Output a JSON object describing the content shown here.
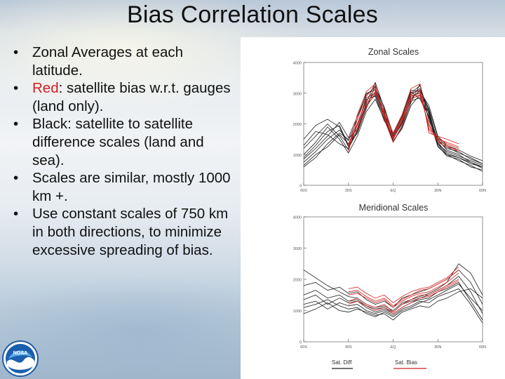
{
  "slide": {
    "title": "Bias Correlation Scales",
    "bullets": [
      {
        "lead": "",
        "lead_color": "",
        "text": "Zonal Averages at each latitude."
      },
      {
        "lead": "Red",
        "lead_color": "#d12020",
        "text": ": satellite bias w.r.t. gauges (land only)."
      },
      {
        "lead": "",
        "lead_color": "",
        "text": "Black: satellite to satellite difference scales (land and sea)."
      },
      {
        "lead": "",
        "lead_color": "",
        "text": "Scales are similar, mostly 1000 km +."
      },
      {
        "lead": "",
        "lead_color": "",
        "text": "Use constant scales of 750 km in both directions, to minimize excessive spreading of bias."
      }
    ],
    "bullet_glyph": "•",
    "logo": {
      "text": "NOAA",
      "icon": "noaa-logo-icon"
    }
  },
  "colors": {
    "black_series": "#1a1a1a",
    "red_series": "#d42020",
    "accent_red": "#d12020"
  },
  "chart_data": [
    {
      "type": "line",
      "title": "Zonal Scales",
      "ylim": [
        0,
        4000
      ],
      "yticks": [
        {
          "value": 0,
          "label": "0"
        },
        {
          "value": 1000,
          "label": "1000"
        },
        {
          "value": 2000,
          "label": "2000"
        },
        {
          "value": 3000,
          "label": "3000"
        },
        {
          "value": 4000,
          "label": "4000"
        }
      ],
      "xlim": [
        -60,
        60
      ],
      "xticks": [
        {
          "value": -60,
          "label": "60S"
        },
        {
          "value": -30,
          "label": "30S"
        },
        {
          "value": 0,
          "label": "EQ"
        },
        {
          "value": 30,
          "label": "30N"
        },
        {
          "value": 60,
          "label": "60N"
        }
      ],
      "x": [
        -60,
        -52,
        -44,
        -36,
        -30,
        -24,
        -18,
        -12,
        -6,
        0,
        6,
        12,
        18,
        24,
        30,
        36,
        44,
        52,
        60
      ],
      "series": [
        {
          "group": "black",
          "values": [
            600,
            900,
            1350,
            1700,
            1500,
            1850,
            2650,
            3050,
            2250,
            1500,
            2100,
            2900,
            3000,
            2400,
            1350,
            1100,
            950,
            800,
            650
          ]
        },
        {
          "group": "black",
          "values": [
            900,
            1300,
            1750,
            1950,
            1300,
            1700,
            2500,
            3250,
            2400,
            1400,
            1900,
            2700,
            3300,
            2100,
            1500,
            1150,
            1000,
            750,
            550
          ]
        },
        {
          "group": "black",
          "values": [
            1200,
            1600,
            2000,
            1600,
            1150,
            2000,
            2800,
            2900,
            2100,
            1650,
            2250,
            3050,
            2800,
            2250,
            1300,
            950,
            850,
            600,
            500
          ]
        },
        {
          "group": "black",
          "values": [
            750,
            1100,
            1500,
            1800,
            1450,
            2150,
            3000,
            3100,
            2300,
            1550,
            2000,
            2800,
            3100,
            2500,
            1550,
            1250,
            1050,
            900,
            700
          ]
        },
        {
          "group": "black",
          "values": [
            1500,
            1950,
            2150,
            1900,
            1250,
            1800,
            2700,
            3350,
            2500,
            1600,
            2150,
            3000,
            3250,
            2300,
            1400,
            1050,
            900,
            700,
            600
          ]
        },
        {
          "group": "black",
          "values": [
            1000,
            1400,
            1900,
            1500,
            1050,
            1600,
            2400,
            2800,
            2150,
            1450,
            1850,
            2600,
            2950,
            2200,
            1250,
            1000,
            800,
            650,
            450
          ]
        },
        {
          "group": "black",
          "values": [
            650,
            1000,
            1250,
            1650,
            1350,
            1950,
            2850,
            3000,
            2350,
            1700,
            2300,
            3100,
            3050,
            2600,
            1600,
            1300,
            1150,
            950,
            800
          ]
        },
        {
          "group": "black",
          "values": [
            1300,
            1750,
            1650,
            1350,
            1200,
            1750,
            2600,
            2950,
            2200,
            1500,
            2050,
            2750,
            2850,
            2350,
            1450,
            1200,
            1100,
            850,
            700
          ]
        },
        {
          "group": "black",
          "values": [
            850,
            1200,
            1600,
            2050,
            1550,
            2250,
            2950,
            3200,
            2550,
            1650,
            2200,
            2950,
            3150,
            2450,
            1350,
            1000,
            900,
            750,
            600
          ]
        },
        {
          "group": "red",
          "values": [
            null,
            null,
            null,
            null,
            1350,
            2000,
            2750,
            3150,
            2300,
            1550,
            2150,
            3000,
            3100,
            1800,
            1500,
            1400,
            1250,
            null,
            null
          ]
        },
        {
          "group": "red",
          "values": [
            null,
            null,
            null,
            null,
            1200,
            2300,
            3050,
            3300,
            2150,
            1400,
            1950,
            2800,
            2950,
            1950,
            1450,
            1300,
            1100,
            null,
            null
          ]
        },
        {
          "group": "red",
          "values": [
            null,
            null,
            null,
            null,
            1550,
            1800,
            2550,
            3000,
            2450,
            1700,
            2300,
            3150,
            3300,
            1700,
            1600,
            1500,
            1350,
            null,
            null
          ]
        },
        {
          "group": "red",
          "values": [
            null,
            null,
            null,
            null,
            1100,
            2150,
            2900,
            3250,
            2250,
            1500,
            2100,
            2850,
            3050,
            1850,
            1550,
            1350,
            1200,
            null,
            null
          ]
        },
        {
          "group": "red",
          "values": [
            null,
            null,
            null,
            null,
            1300,
            1950,
            2650,
            3050,
            2350,
            1650,
            2200,
            2950,
            2900,
            2000,
            1400,
            1250,
            1150,
            null,
            null
          ]
        }
      ]
    },
    {
      "type": "line",
      "title": "Meridional Scales",
      "ylim": [
        0,
        4000
      ],
      "yticks": [
        {
          "value": 0,
          "label": "0"
        },
        {
          "value": 1000,
          "label": "1000"
        },
        {
          "value": 2000,
          "label": "2000"
        },
        {
          "value": 3000,
          "label": "3000"
        },
        {
          "value": 4000,
          "label": "4000"
        }
      ],
      "xlim": [
        -60,
        60
      ],
      "xticks": [
        {
          "value": -60,
          "label": "60S"
        },
        {
          "value": -30,
          "label": "30S"
        },
        {
          "value": 0,
          "label": "EQ"
        },
        {
          "value": 30,
          "label": "30N"
        },
        {
          "value": 60,
          "label": "60N"
        }
      ],
      "x": [
        -60,
        -52,
        -44,
        -36,
        -30,
        -24,
        -18,
        -12,
        -6,
        0,
        6,
        12,
        18,
        24,
        30,
        36,
        44,
        52,
        60
      ],
      "series": [
        {
          "group": "black",
          "values": [
            1200,
            1300,
            1050,
            1250,
            1150,
            1200,
            1000,
            900,
            1000,
            850,
            1050,
            1150,
            1300,
            1250,
            1450,
            1550,
            1700,
            1200,
            600
          ]
        },
        {
          "group": "black",
          "values": [
            1500,
            1650,
            1400,
            1500,
            1300,
            1350,
            1150,
            1050,
            1100,
            950,
            1200,
            1300,
            1400,
            1500,
            1650,
            1800,
            2100,
            1600,
            900
          ]
        },
        {
          "group": "black",
          "values": [
            900,
            1050,
            1250,
            1000,
            950,
            1050,
            950,
            850,
            900,
            700,
            950,
            1050,
            1150,
            1100,
            1300,
            1400,
            1600,
            1700,
            1400
          ]
        },
        {
          "group": "black",
          "values": [
            1800,
            1900,
            1650,
            1750,
            1550,
            1600,
            1350,
            1200,
            1300,
            1100,
            1400,
            1500,
            1600,
            1700,
            1850,
            2000,
            2300,
            1900,
            1200
          ]
        },
        {
          "group": "black",
          "values": [
            1100,
            1200,
            1350,
            1150,
            1050,
            1100,
            900,
            800,
            950,
            800,
            1000,
            1100,
            1250,
            1350,
            1500,
            1650,
            1850,
            1400,
            1000
          ]
        },
        {
          "group": "black",
          "values": [
            2300,
            2050,
            1800,
            1600,
            1450,
            1400,
            1200,
            1100,
            1150,
            1000,
            1250,
            1350,
            1450,
            1550,
            1700,
            1900,
            2500,
            2200,
            1500
          ]
        },
        {
          "group": "black",
          "values": [
            1350,
            1500,
            1200,
            1400,
            1250,
            1300,
            1100,
            950,
            1050,
            900,
            1100,
            1250,
            1350,
            1400,
            1600,
            1700,
            1900,
            1300,
            700
          ]
        },
        {
          "group": "red",
          "values": [
            null,
            null,
            null,
            null,
            1500,
            1550,
            1400,
            1250,
            1350,
            1100,
            1300,
            1450,
            1550,
            1600,
            1750,
            1900,
            2200,
            null,
            null
          ]
        },
        {
          "group": "red",
          "values": [
            null,
            null,
            null,
            null,
            1300,
            1400,
            1200,
            1100,
            1200,
            950,
            1200,
            1350,
            1500,
            1500,
            1650,
            1800,
            2000,
            null,
            null
          ]
        },
        {
          "group": "red",
          "values": [
            null,
            null,
            null,
            null,
            1700,
            1750,
            1550,
            1400,
            1500,
            1250,
            1450,
            1600,
            1700,
            1750,
            1900,
            2050,
            2400,
            null,
            null
          ]
        },
        {
          "group": "red",
          "values": [
            null,
            null,
            null,
            null,
            1200,
            1300,
            1150,
            1000,
            1100,
            900,
            1100,
            1250,
            1400,
            1450,
            1600,
            1750,
            1950,
            null,
            null
          ]
        },
        {
          "group": "red",
          "values": [
            null,
            null,
            null,
            null,
            1600,
            1650,
            1450,
            1300,
            1400,
            1150,
            1350,
            1500,
            1650,
            1700,
            1850,
            2000,
            2300,
            null,
            null
          ]
        }
      ]
    }
  ],
  "legend": [
    {
      "label": "Sat. Diff",
      "color": "#1a1a1a"
    },
    {
      "label": "Sat. Bias",
      "color": "#d42020"
    }
  ]
}
